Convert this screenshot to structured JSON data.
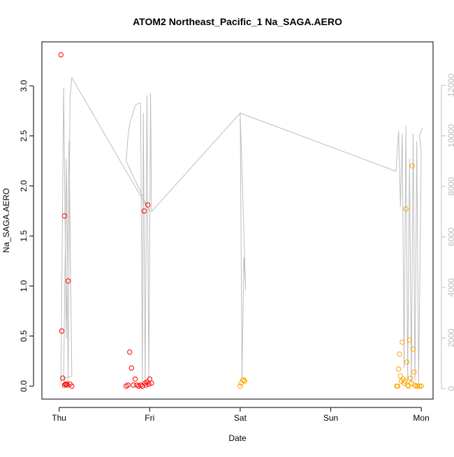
{
  "chart_data": {
    "type": "scatter",
    "title": "ATOM2 Northeast_Pacific_1 Na_SAGA.AERO",
    "xlabel": "Date",
    "ylabel": "Na_SAGA.AERO",
    "xticks": [
      "Thu",
      "Fri",
      "Sat",
      "Sun",
      "Mon"
    ],
    "xlim": [
      -0.19,
      4.13
    ],
    "ylim": [
      -0.13,
      3.44
    ],
    "yticks": [
      0.0,
      0.5,
      1.0,
      1.5,
      2.0,
      2.5,
      3.0
    ],
    "y2lim": [
      -420,
      13720
    ],
    "y2ticks": [
      0,
      2000,
      4000,
      6000,
      8000,
      10000,
      12000
    ],
    "grid": false,
    "colors": {
      "red": "#ff0000",
      "orange": "#ffa500",
      "altitude": "#bebebe",
      "axis": "#000000",
      "axis2": "#bebebe"
    },
    "series": [
      {
        "color": "red",
        "x": [
          0.02,
          0.03,
          0.04,
          0.06,
          0.06,
          0.07,
          0.08,
          0.09,
          0.1,
          0.12,
          0.14,
          0.74,
          0.76,
          0.78,
          0.8,
          0.82,
          0.84,
          0.86,
          0.88,
          0.9,
          0.92,
          0.94,
          0.95,
          0.96,
          0.98,
          0.99,
          1.0,
          0.97,
          1.02
        ],
        "y": [
          3.31,
          0.55,
          0.08,
          0.01,
          1.7,
          0.02,
          0.02,
          0.01,
          1.05,
          0.02,
          0.0,
          0.0,
          0.01,
          0.34,
          0.18,
          0.01,
          0.07,
          0.01,
          0.0,
          0.01,
          0.0,
          1.75,
          0.03,
          0.01,
          1.81,
          0.02,
          0.07,
          0.04,
          0.03
        ]
      },
      {
        "color": "orange",
        "x": [
          2.0,
          2.01,
          2.03,
          2.04,
          2.05,
          3.73,
          3.74,
          3.75,
          3.76,
          3.77,
          3.78,
          3.79,
          3.8,
          3.81,
          3.82,
          3.83,
          3.84,
          3.85,
          3.86,
          3.87,
          3.88,
          3.89,
          3.9,
          3.91,
          3.92,
          3.93,
          3.94,
          3.96,
          3.98,
          4.0
        ],
        "y": [
          0.0,
          0.03,
          0.06,
          0.06,
          0.05,
          0.0,
          0.0,
          0.17,
          0.32,
          0.1,
          0.05,
          0.44,
          0.07,
          0.03,
          0.05,
          1.77,
          0.24,
          0.01,
          0.0,
          0.46,
          0.08,
          0.03,
          2.2,
          0.37,
          0.14,
          0.01,
          0.0,
          0.0,
          0.0,
          0.0
        ]
      }
    ],
    "altitude_series": {
      "color": "altitude",
      "x": [
        0.02,
        0.05,
        0.08,
        0.11,
        0.14,
        0.06,
        0.05,
        0.08,
        0.1,
        0.12,
        0.14,
        1.0,
        0.74,
        0.76,
        0.78,
        0.8,
        0.84,
        0.88,
        0.9,
        0.92,
        0.93,
        0.95,
        0.97,
        0.99,
        1.01,
        1.02,
        2.0,
        2.02,
        2.04,
        2.06,
        2.0,
        3.72,
        3.75,
        3.77,
        3.79,
        3.81,
        3.83,
        3.85,
        3.87,
        3.89,
        3.91,
        3.93,
        3.95,
        3.97,
        4.0,
        3.98,
        4.01
      ],
      "y": [
        200,
        11900,
        2000,
        9800,
        500,
        400,
        300,
        9100,
        100,
        11500,
        12300,
        7000,
        9000,
        9900,
        10500,
        10700,
        11200,
        11300,
        11300,
        200,
        10900,
        200,
        11600,
        200,
        11700,
        7000,
        10900,
        400,
        5200,
        3900,
        10900,
        8600,
        10200,
        7200,
        10100,
        800,
        10400,
        300,
        9100,
        200,
        10100,
        300,
        9800,
        200,
        9300,
        10000,
        10300
      ]
    }
  }
}
